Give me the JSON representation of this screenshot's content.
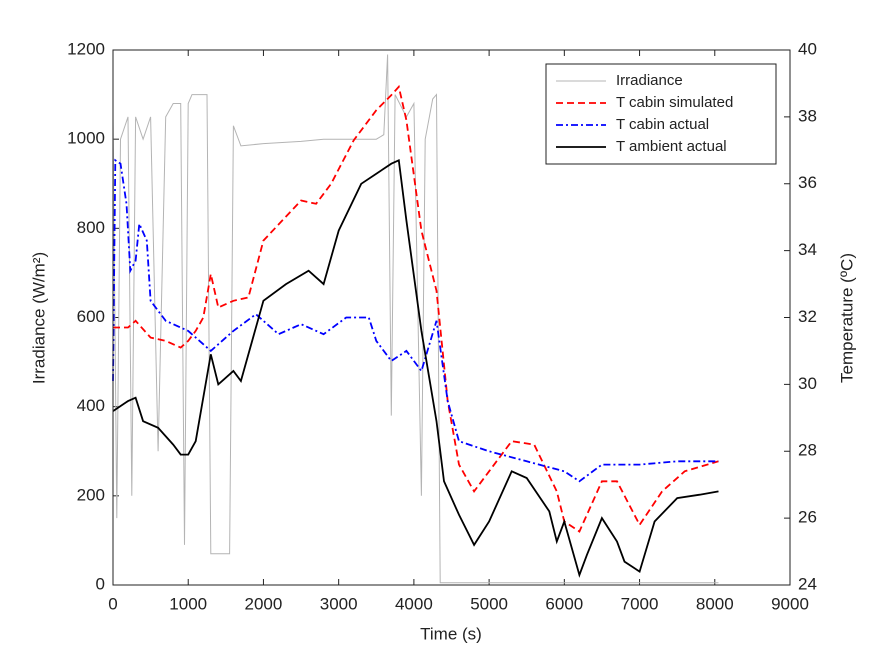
{
  "chart_data": {
    "type": "line",
    "xlabel": "Time (s)",
    "ylabel": "Irradiance (W/m²)",
    "y2label": "Temperature (ºC)",
    "xlim": [
      0,
      9000
    ],
    "xticks": [
      0,
      1000,
      2000,
      3000,
      4000,
      5000,
      6000,
      7000,
      8000,
      9000
    ],
    "ylim": [
      0,
      1200
    ],
    "yticks": [
      0,
      200,
      400,
      600,
      800,
      1000,
      1200
    ],
    "y2lim": [
      24,
      40
    ],
    "y2ticks": [
      24,
      26,
      28,
      30,
      32,
      34,
      36,
      38,
      40
    ],
    "legend": "upper right",
    "series": [
      {
        "name": "Irradiance",
        "color": "#b4b4b4",
        "style": "solid",
        "x": [
          0,
          50,
          100,
          200,
          250,
          300,
          400,
          500,
          600,
          700,
          800,
          900,
          950,
          1000,
          1050,
          1250,
          1300,
          1550,
          1600,
          1700,
          2000,
          2500,
          2800,
          3000,
          3500,
          3600,
          3650,
          3700,
          3750,
          3900,
          4000,
          4100,
          4150,
          4250,
          4300,
          4350,
          5000,
          6000,
          7000,
          8050
        ],
        "values": [
          1050,
          150,
          1000,
          1050,
          200,
          1050,
          1000,
          1050,
          300,
          1050,
          1080,
          1080,
          90,
          1080,
          1100,
          1100,
          70,
          70,
          1030,
          985,
          990,
          995,
          1000,
          1000,
          1000,
          1010,
          1190,
          380,
          1100,
          1050,
          1080,
          200,
          1000,
          1090,
          1100,
          5,
          5,
          5,
          5,
          5
        ]
      },
      {
        "name": "T cabin simulated",
        "color": "#ff0000",
        "style": "dashed",
        "axis": "y2",
        "x": [
          0,
          200,
          300,
          500,
          700,
          900,
          1000,
          1100,
          1200,
          1300,
          1400,
          1600,
          1800,
          2000,
          2500,
          2700,
          2900,
          3200,
          3500,
          3700,
          3800,
          3900,
          4100,
          4300,
          4450,
          4600,
          4800,
          5000,
          5300,
          5600,
          5900,
          6000,
          6200,
          6500,
          6700,
          7000,
          7300,
          7600,
          8050
        ],
        "values": [
          31.7,
          31.7,
          31.9,
          31.4,
          31.3,
          31.1,
          31.3,
          31.6,
          32.0,
          33.3,
          32.3,
          32.5,
          32.6,
          34.3,
          35.5,
          35.4,
          36.0,
          37.3,
          38.2,
          38.65,
          38.9,
          37.9,
          34.6,
          32.8,
          29.5,
          27.6,
          26.8,
          27.4,
          28.3,
          28.2,
          26.8,
          25.9,
          25.6,
          27.1,
          27.1,
          25.8,
          26.8,
          27.4,
          27.7
        ]
      },
      {
        "name": "T cabin actual",
        "color": "#0000ff",
        "style": "dashdot",
        "axis": "y2",
        "x": [
          0,
          30,
          100,
          180,
          230,
          300,
          350,
          450,
          500,
          700,
          1000,
          1300,
          1600,
          1900,
          2200,
          2500,
          2800,
          3100,
          3400,
          3500,
          3700,
          3900,
          4100,
          4300,
          4450,
          4600,
          5000,
          5500,
          6000,
          6200,
          6500,
          7000,
          7500,
          8050
        ],
        "values": [
          30.1,
          36.7,
          36.6,
          35.4,
          33.4,
          33.7,
          34.8,
          34.3,
          32.5,
          31.9,
          31.6,
          31.0,
          31.6,
          32.1,
          31.5,
          31.8,
          31.5,
          32.0,
          32.0,
          31.3,
          30.7,
          31.0,
          30.4,
          31.9,
          29.5,
          28.3,
          28.0,
          27.7,
          27.4,
          27.1,
          27.6,
          27.6,
          27.7,
          27.7
        ]
      },
      {
        "name": "T ambient actual",
        "color": "#000000",
        "style": "solid",
        "axis": "y2",
        "x": [
          0,
          200,
          300,
          400,
          600,
          800,
          900,
          1000,
          1100,
          1300,
          1400,
          1600,
          1700,
          2000,
          2300,
          2600,
          2800,
          3000,
          3300,
          3500,
          3700,
          3800,
          3900,
          4100,
          4300,
          4400,
          4600,
          4800,
          5000,
          5300,
          5500,
          5800,
          5900,
          6000,
          6200,
          6300,
          6500,
          6700,
          6800,
          7000,
          7200,
          7500,
          7800,
          8050
        ],
        "values": [
          29.2,
          29.5,
          29.6,
          28.9,
          28.7,
          28.2,
          27.9,
          27.9,
          28.3,
          30.9,
          30.0,
          30.4,
          30.1,
          32.5,
          33.0,
          33.4,
          33.0,
          34.6,
          36.0,
          36.3,
          36.6,
          36.7,
          34.9,
          31.6,
          28.9,
          27.1,
          26.1,
          25.2,
          25.9,
          27.4,
          27.2,
          26.2,
          25.3,
          25.9,
          24.3,
          24.9,
          26.0,
          25.3,
          24.7,
          24.4,
          25.9,
          26.6,
          26.7,
          26.8
        ]
      }
    ]
  }
}
